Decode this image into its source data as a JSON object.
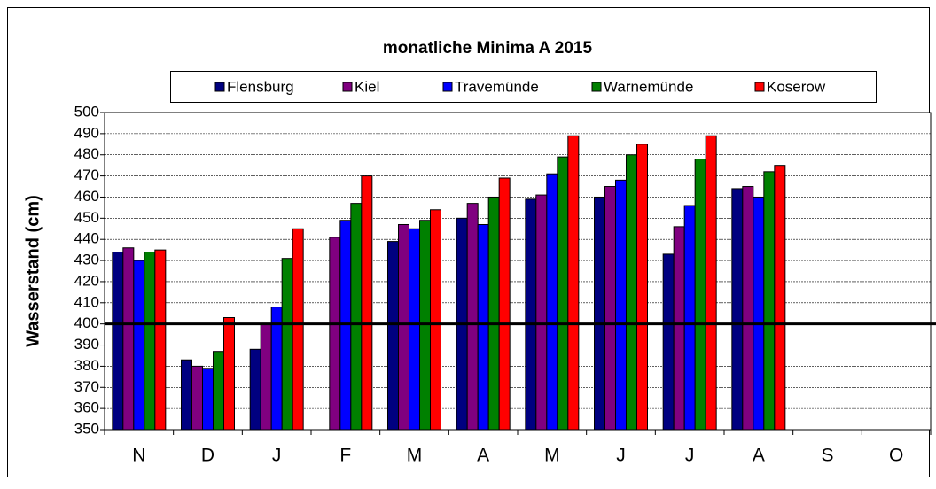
{
  "chart_data": {
    "type": "bar",
    "title": "monatliche Minima A 2015",
    "y_label": "Wasserstand  (cm)",
    "categories": [
      "N",
      "D",
      "J",
      "F",
      "M",
      "A",
      "M",
      "J",
      "J",
      "A",
      "S",
      "O"
    ],
    "series": [
      {
        "name": "Flensburg",
        "color": "#000080",
        "values": [
          434,
          383,
          388,
          null,
          439,
          450,
          459,
          460,
          433,
          464,
          null,
          null
        ]
      },
      {
        "name": "Kiel",
        "color": "#800080",
        "values": [
          436,
          380,
          400,
          441,
          447,
          457,
          461,
          465,
          446,
          465,
          null,
          null
        ]
      },
      {
        "name": "Travemünde",
        "color": "#0000ff",
        "values": [
          430,
          379,
          408,
          449,
          445,
          447,
          471,
          468,
          456,
          460,
          null,
          null
        ]
      },
      {
        "name": "Warnemünde",
        "color": "#008000",
        "values": [
          434,
          387,
          431,
          457,
          449,
          460,
          479,
          480,
          478,
          472,
          null,
          null
        ]
      },
      {
        "name": "Koserow",
        "color": "#ff0000",
        "values": [
          435,
          403,
          445,
          470,
          454,
          469,
          489,
          485,
          489,
          475,
          null,
          null
        ]
      }
    ],
    "ylim": [
      350,
      500
    ],
    "yticks": [
      350,
      360,
      370,
      380,
      390,
      400,
      410,
      420,
      430,
      440,
      450,
      460,
      470,
      480,
      490,
      500
    ],
    "grid": true,
    "reference_line": 400,
    "legend": "top"
  }
}
